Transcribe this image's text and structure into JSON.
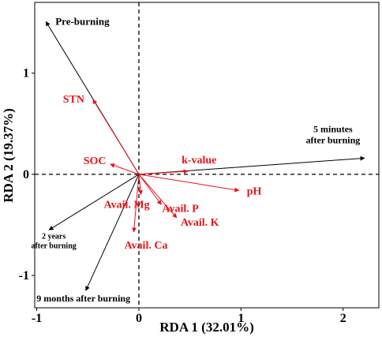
{
  "chart_data": {
    "type": "scatter",
    "subtype": "rda-biplot",
    "title": "",
    "xlabel": "RDA 1 (32.01%)",
    "ylabel": "RDA 2 (19.37%)",
    "xlim": [
      -1.02,
      2.35
    ],
    "ylim": [
      -1.32,
      1.7
    ],
    "xticks": [
      -1,
      0,
      1,
      2
    ],
    "yticks": [
      -1,
      0,
      1
    ],
    "reference_lines": {
      "x": 0,
      "y": 0,
      "style": "dashed"
    },
    "grid": false,
    "colors": {
      "samples": "#000000",
      "environment": "#e8141b"
    },
    "sample_arrows": [
      {
        "name": "Pre-burning",
        "x": -0.91,
        "y": 1.51
      },
      {
        "name": "5 minutes after burning",
        "lines": [
          "5 minutes",
          "after burning"
        ],
        "x": 2.21,
        "y": 0.16
      },
      {
        "name": "2 years after burning",
        "lines": [
          "2 years",
          "after burning"
        ],
        "x": -0.88,
        "y": -0.55
      },
      {
        "name": "9 months after burning",
        "lines": [
          "9 months after burning"
        ],
        "x": -0.52,
        "y": -1.15
      }
    ],
    "environment_arrows": [
      {
        "name": "STN",
        "x": -0.45,
        "y": 0.74
      },
      {
        "name": "SOC",
        "x": -0.28,
        "y": 0.1
      },
      {
        "name": "k-value",
        "x": 0.48,
        "y": 0.03
      },
      {
        "name": "pH",
        "x": 0.98,
        "y": -0.16
      },
      {
        "name": "Avail. Mg",
        "x": 0.02,
        "y": -0.2
      },
      {
        "name": "Avail. P",
        "x": 0.22,
        "y": -0.3
      },
      {
        "name": "Avail. K",
        "x": 0.37,
        "y": -0.43
      },
      {
        "name": "Avail. Ca",
        "x": -0.05,
        "y": -0.57
      }
    ]
  }
}
